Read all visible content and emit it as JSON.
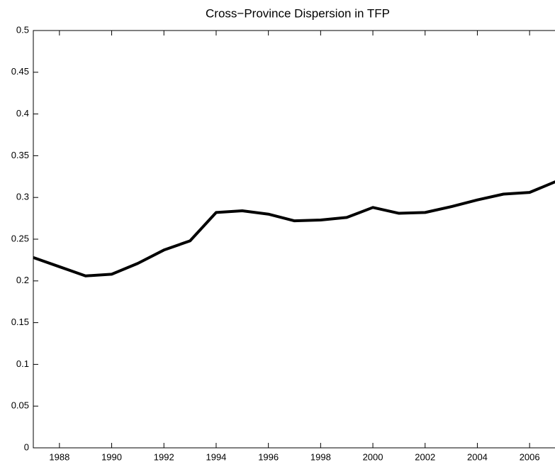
{
  "chart_data": {
    "type": "line",
    "title": "Cross−Province Dispersion in TFP",
    "x": [
      1987,
      1988,
      1989,
      1990,
      1991,
      1992,
      1993,
      1994,
      1995,
      1996,
      1997,
      1998,
      1999,
      2000,
      2001,
      2002,
      2003,
      2004,
      2005,
      2006,
      2007
    ],
    "values": [
      0.228,
      0.217,
      0.206,
      0.208,
      0.221,
      0.237,
      0.248,
      0.282,
      0.284,
      0.28,
      0.272,
      0.273,
      0.276,
      0.288,
      0.281,
      0.282,
      0.289,
      0.297,
      0.304,
      0.306,
      0.319
    ],
    "color": "#000000",
    "xlim": [
      1987,
      2007
    ],
    "xticks": [
      1988,
      1990,
      1992,
      1994,
      1996,
      1998,
      2000,
      2002,
      2004,
      2006
    ],
    "ylim": [
      0,
      0.5
    ],
    "yticks": [
      0,
      0.05,
      0.1,
      0.15,
      0.2,
      0.25,
      0.3,
      0.35,
      0.4,
      0.45,
      0.5
    ],
    "grid": false
  }
}
